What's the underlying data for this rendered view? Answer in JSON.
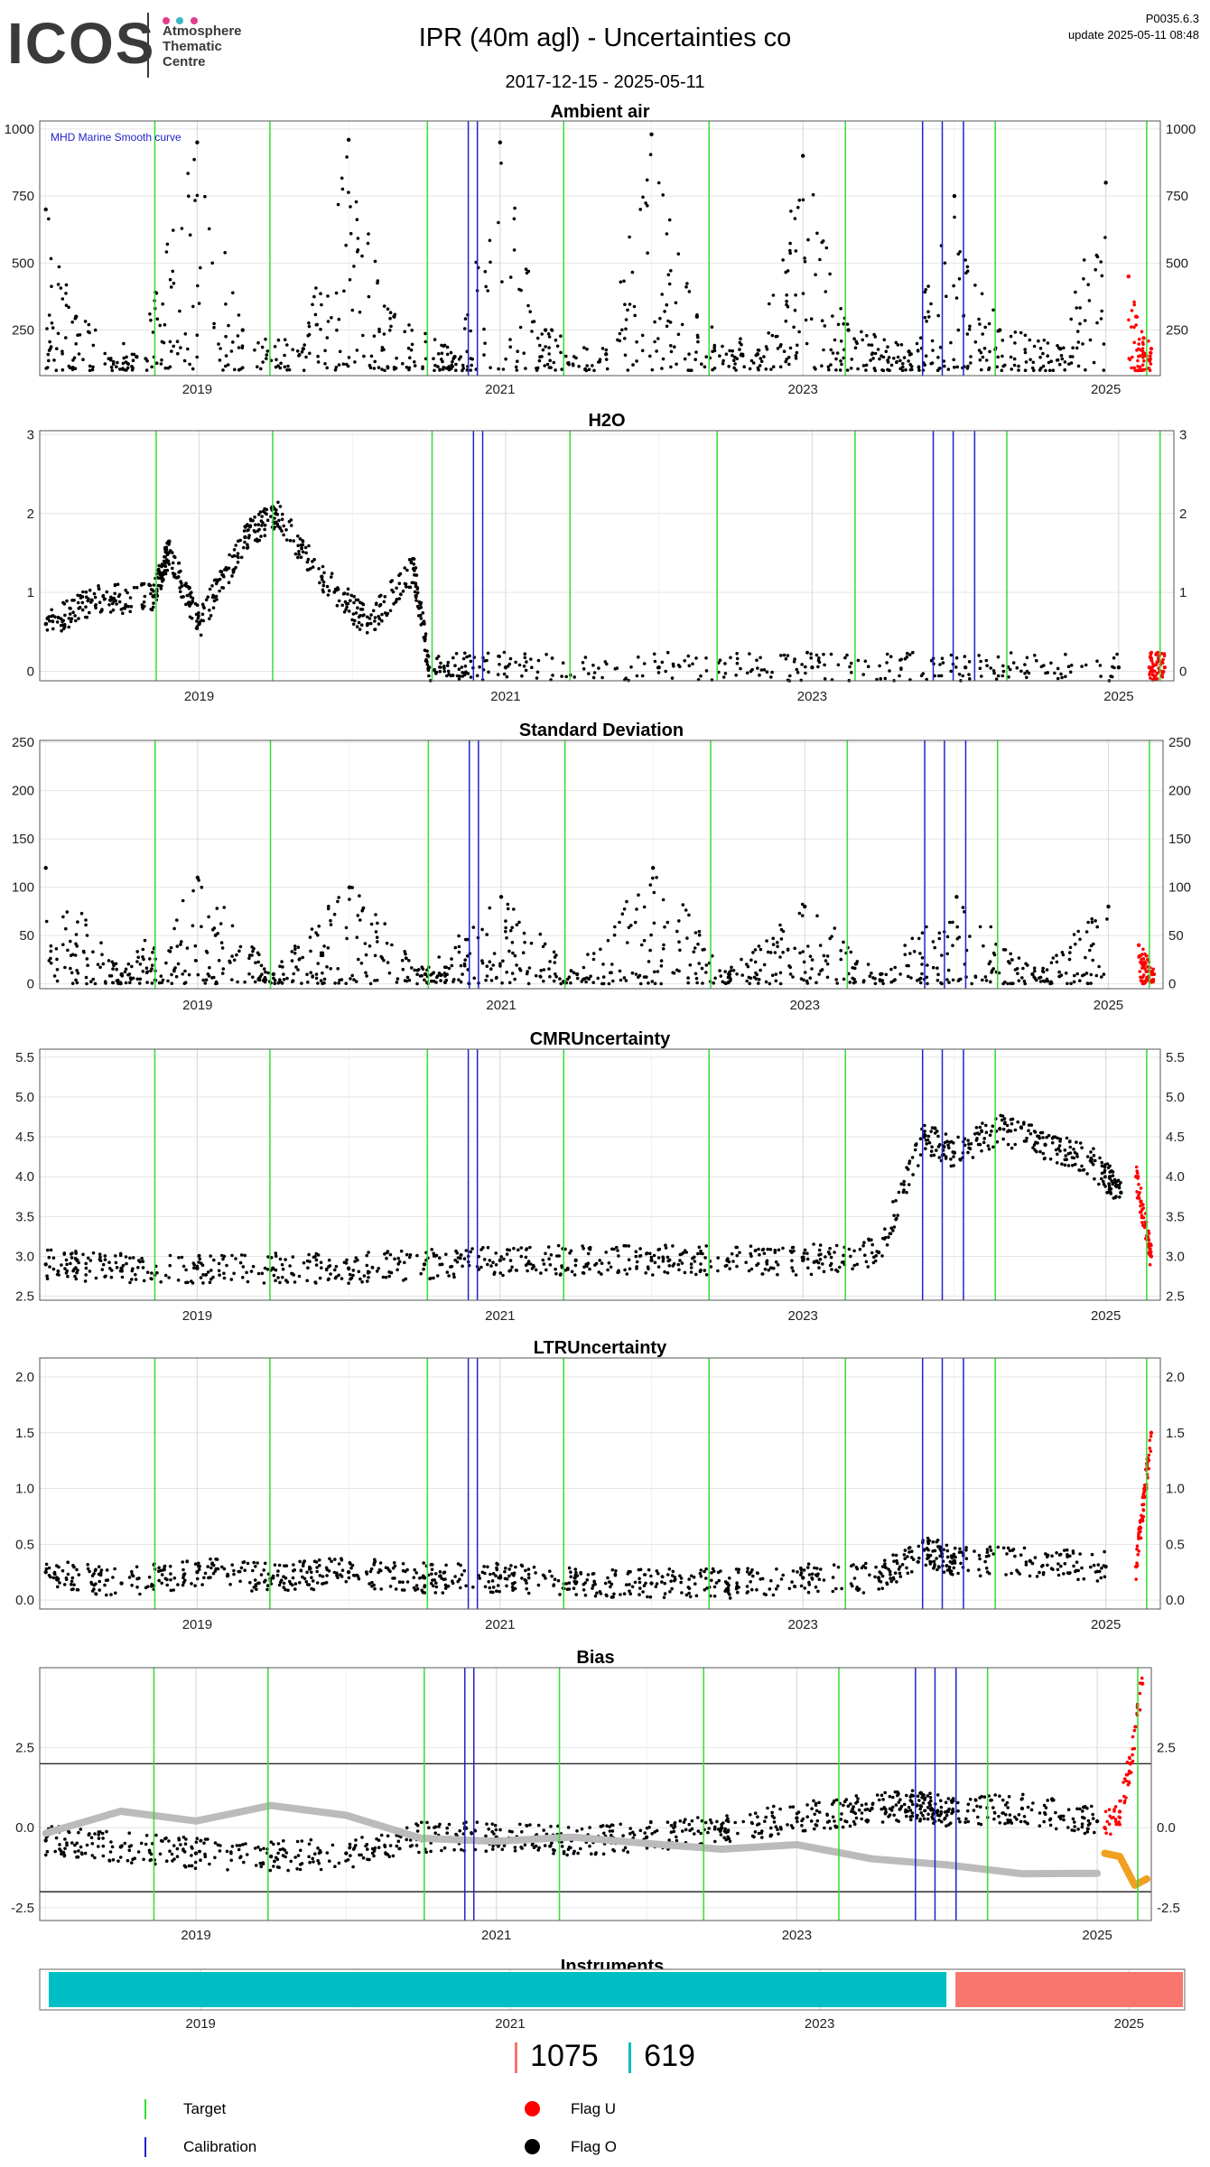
{
  "header": {
    "logo_text": "ICOS",
    "logo_subtitle": [
      "Atmosphere",
      "Thematic",
      "Centre"
    ],
    "logo_dot_colors": [
      "#e23e8e",
      "#3cb6c8",
      "#e23e8e"
    ],
    "title": "IPR  (40m agl) - Uncertainties co",
    "date_range": "2017-12-15 - 2025-05-11",
    "version": "P0035.6.3",
    "update": "update  2025-05-11 08:48"
  },
  "colors": {
    "target_line": "#33dd33",
    "calibration_line": "#2222cc",
    "flag_u": "#ff0000",
    "flag_o": "#000000",
    "instrument_a": "#00bfc4",
    "instrument_b": "#f8766d",
    "smooth_gray": "#bbbbbb",
    "bias_orange": "#f0a020"
  },
  "chart_data": [
    {
      "type": "scatter",
      "title": "Ambient air",
      "annotation": "MHD Marine Smooth curve",
      "xlim": [
        2017.96,
        2025.36
      ],
      "ylim": [
        80,
        1030
      ],
      "yticks": [
        250,
        500,
        750,
        1000
      ],
      "xticks": [
        2019,
        2021,
        2023,
        2025
      ],
      "targets": [
        2018.72,
        2019.48,
        2020.52,
        2021.42,
        2022.38,
        2023.28,
        2024.27,
        2025.27
      ],
      "calibrations": [
        2020.79,
        2020.85,
        2023.79,
        2023.92,
        2024.06
      ],
      "series": [
        {
          "name": "Flag O",
          "x": [
            2018.0,
            2018.2,
            2018.6,
            2019.0,
            2019.3,
            2019.7,
            2020.0,
            2020.3,
            2020.7,
            2021.0,
            2021.3,
            2021.7,
            2022.0,
            2022.3,
            2022.7,
            2023.0,
            2023.3,
            2023.7,
            2024.0,
            2024.3,
            2024.7,
            2025.0
          ],
          "y": [
            700,
            300,
            150,
            950,
            250,
            180,
            960,
            300,
            150,
            950,
            250,
            160,
            980,
            300,
            160,
            900,
            250,
            170,
            750,
            250,
            180,
            800
          ]
        },
        {
          "name": "Flag U",
          "x": [
            2025.15,
            2025.2,
            2025.25,
            2025.3
          ],
          "y": [
            450,
            300,
            220,
            180
          ]
        }
      ]
    },
    {
      "type": "scatter",
      "title": "H2O",
      "xlim": [
        2017.96,
        2025.36
      ],
      "ylim": [
        -0.12,
        3.05
      ],
      "yticks": [
        0,
        1,
        2,
        3
      ],
      "xticks": [
        2019,
        2021,
        2023,
        2025
      ],
      "targets": [
        2018.72,
        2019.48,
        2020.52,
        2021.42,
        2022.38,
        2023.28,
        2024.27,
        2025.27
      ],
      "calibrations": [
        2020.79,
        2020.85,
        2023.79,
        2023.92,
        2024.06
      ],
      "series": [
        {
          "name": "Flag O",
          "x": [
            2018.0,
            2018.3,
            2018.7,
            2018.8,
            2019.0,
            2019.3,
            2019.5,
            2019.8,
            2020.1,
            2020.4,
            2020.5,
            2021.0,
            2022.0,
            2023.0,
            2024.0,
            2025.0
          ],
          "y": [
            0.6,
            0.9,
            0.95,
            1.5,
            0.6,
            1.7,
            2.0,
            1.2,
            0.6,
            1.3,
            0.05,
            0.05,
            0.05,
            0.05,
            0.05,
            0.05
          ]
        },
        {
          "name": "Flag U",
          "x": [
            2025.2,
            2025.3
          ],
          "y": [
            0.05,
            0.05
          ]
        }
      ]
    },
    {
      "type": "scatter",
      "title": "Standard Deviation",
      "xlim": [
        2017.96,
        2025.36
      ],
      "ylim": [
        -5,
        252
      ],
      "yticks": [
        0,
        50,
        100,
        150,
        200,
        250
      ],
      "xticks": [
        2019,
        2021,
        2023,
        2025
      ],
      "targets": [
        2018.72,
        2019.48,
        2020.52,
        2021.42,
        2022.38,
        2023.28,
        2024.27,
        2025.27
      ],
      "calibrations": [
        2020.79,
        2020.85,
        2023.79,
        2023.92,
        2024.06
      ],
      "series": [
        {
          "name": "Flag O",
          "x": [
            2018.0,
            2018.5,
            2019.0,
            2019.5,
            2020.0,
            2020.5,
            2021.0,
            2021.5,
            2022.0,
            2022.5,
            2023.0,
            2023.5,
            2024.0,
            2024.5,
            2025.0
          ],
          "y": [
            120,
            10,
            110,
            10,
            100,
            10,
            90,
            10,
            120,
            10,
            80,
            10,
            90,
            10,
            80
          ]
        },
        {
          "name": "Flag U",
          "x": [
            2025.2,
            2025.3
          ],
          "y": [
            40,
            10
          ]
        }
      ]
    },
    {
      "type": "scatter",
      "title": "CMRUncertainty",
      "xlim": [
        2017.96,
        2025.36
      ],
      "ylim": [
        2.45,
        5.6
      ],
      "yticks": [
        2.5,
        3.0,
        3.5,
        4.0,
        4.5,
        5.0,
        5.5
      ],
      "xticks": [
        2019,
        2021,
        2023,
        2025
      ],
      "targets": [
        2018.72,
        2019.48,
        2020.52,
        2021.42,
        2022.38,
        2023.28,
        2024.27,
        2025.27
      ],
      "calibrations": [
        2020.79,
        2020.85,
        2023.79,
        2023.92,
        2024.06
      ],
      "series": [
        {
          "name": "Flag O",
          "x": [
            2018.0,
            2018.5,
            2019.0,
            2019.5,
            2020.0,
            2020.5,
            2021.0,
            2021.5,
            2022.0,
            2022.5,
            2023.0,
            2023.5,
            2023.8,
            2024.0,
            2024.3,
            2024.6,
            2024.9,
            2025.1
          ],
          "y": [
            2.9,
            2.85,
            2.85,
            2.85,
            2.85,
            2.9,
            2.95,
            2.95,
            2.95,
            2.95,
            2.95,
            3.05,
            4.5,
            4.3,
            4.6,
            4.4,
            4.2,
            3.8
          ]
        },
        {
          "name": "Flag U",
          "x": [
            2025.2,
            2025.3
          ],
          "y": [
            4.0,
            3.0
          ]
        }
      ]
    },
    {
      "type": "scatter",
      "title": "LTRUncertainty",
      "xlim": [
        2017.96,
        2025.36
      ],
      "ylim": [
        -0.08,
        2.17
      ],
      "yticks": [
        0.0,
        0.5,
        1.0,
        1.5,
        2.0
      ],
      "xticks": [
        2019,
        2021,
        2023,
        2025
      ],
      "targets": [
        2018.72,
        2019.48,
        2020.52,
        2021.42,
        2022.38,
        2023.28,
        2024.27,
        2025.27
      ],
      "calibrations": [
        2020.79,
        2020.85,
        2023.79,
        2023.92,
        2024.06
      ],
      "series": [
        {
          "name": "Flag O",
          "x": [
            2018.0,
            2018.5,
            2019.0,
            2019.5,
            2020.0,
            2020.5,
            2021.0,
            2021.5,
            2022.0,
            2022.5,
            2023.0,
            2023.5,
            2023.8,
            2024.0,
            2024.5,
            2025.0
          ],
          "y": [
            0.25,
            0.15,
            0.25,
            0.2,
            0.25,
            0.2,
            0.2,
            0.15,
            0.15,
            0.15,
            0.2,
            0.2,
            0.45,
            0.35,
            0.35,
            0.3
          ]
        },
        {
          "name": "Flag U",
          "x": [
            2025.2,
            2025.3
          ],
          "y": [
            0.3,
            1.5
          ]
        }
      ]
    },
    {
      "type": "line",
      "title": "Bias",
      "xlim": [
        2017.96,
        2025.36
      ],
      "ylim": [
        -2.9,
        5.0
      ],
      "yticks": [
        -2.5,
        0.0,
        2.5
      ],
      "xticks": [
        2019,
        2021,
        2023,
        2025
      ],
      "hlines": [
        2,
        -2
      ],
      "targets": [
        2018.72,
        2019.48,
        2020.52,
        2021.42,
        2022.38,
        2023.28,
        2024.27,
        2025.27
      ],
      "calibrations": [
        2020.79,
        2020.85,
        2023.79,
        2023.92,
        2024.06
      ],
      "series": [
        {
          "name": "Flag O",
          "x": [
            2018.0,
            2018.5,
            2019.0,
            2019.5,
            2020.0,
            2020.5,
            2021.0,
            2021.5,
            2022.0,
            2022.5,
            2023.0,
            2023.5,
            2023.8,
            2024.0,
            2024.5,
            2025.0
          ],
          "y": [
            -0.4,
            -0.6,
            -0.8,
            -0.9,
            -0.8,
            -0.3,
            -0.3,
            -0.4,
            -0.3,
            0.0,
            0.3,
            0.6,
            0.7,
            0.5,
            0.6,
            0.2
          ]
        },
        {
          "name": "Smooth",
          "x": [
            2018.0,
            2018.5,
            2019.0,
            2019.5,
            2020.0,
            2020.5,
            2021.0,
            2021.5,
            2022.0,
            2022.5,
            2023.0,
            2023.5,
            2024.0,
            2024.5,
            2025.0
          ],
          "y": [
            0.0,
            0.5,
            0.3,
            0.5,
            0.3,
            -0.2,
            -0.3,
            -0.3,
            -0.5,
            -0.8,
            -0.7,
            -0.9,
            -1.0,
            -1.3,
            -1.5
          ]
        },
        {
          "name": "Flag U",
          "x": [
            2025.05,
            2025.15,
            2025.22,
            2025.3
          ],
          "y": [
            0.0,
            0.5,
            2.0,
            4.5
          ]
        },
        {
          "name": "Orange",
          "x": [
            2025.05,
            2025.15,
            2025.25,
            2025.33
          ],
          "y": [
            -0.8,
            -0.9,
            -1.8,
            -1.6
          ]
        }
      ]
    },
    {
      "type": "bar",
      "title": "Instruments",
      "xlim": [
        2017.96,
        2025.36
      ],
      "xticks": [
        2019,
        2021,
        2023,
        2025
      ],
      "segments": [
        {
          "start": 2017.96,
          "end": 2023.82,
          "color": "#00bfc4",
          "count": "619"
        },
        {
          "start": 2023.82,
          "end": 2025.36,
          "color": "#f8766d",
          "count": "1075"
        }
      ]
    }
  ],
  "counts": [
    {
      "value": "1075",
      "color": "#f8766d"
    },
    {
      "value": "619",
      "color": "#00bfc4"
    }
  ],
  "legend": {
    "target": "Target",
    "calibration": "Calibration",
    "flag_u": "Flag U",
    "flag_o": "Flag O"
  }
}
